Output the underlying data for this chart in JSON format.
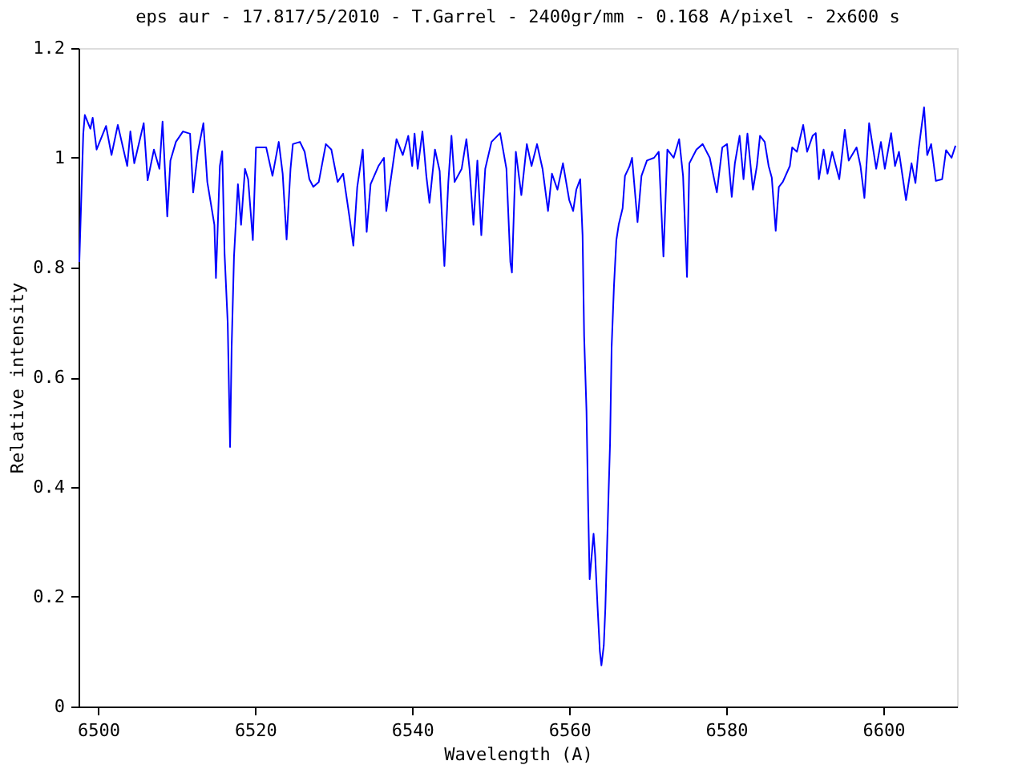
{
  "chart_data": {
    "type": "line",
    "title": "eps aur - 17.817/5/2010 - T.Garrel - 2400gr/mm - 0.168 A/pixel - 2x600 s",
    "xlabel": "Wavelength (A)",
    "ylabel": "Relative intensity",
    "xlim": [
      6497.5,
      6609.4
    ],
    "xticks": [
      6500,
      6520,
      6540,
      6560,
      6580,
      6600
    ],
    "ylim": [
      0,
      1.2
    ],
    "yticks": [
      0,
      0.2,
      0.4,
      0.6,
      0.8,
      1,
      1.2
    ],
    "grid": false,
    "legend": false,
    "marker": "none",
    "line_style": "solid",
    "series": [
      {
        "color": "#0000ff",
        "x": [
          6497.6,
          6498.1,
          6498.3,
          6499.0,
          6499.3,
          6499.8,
          6501.0,
          6501.7,
          6502.5,
          6503.7,
          6504.1,
          6504.6,
          6505.8,
          6506.3,
          6507.1,
          6507.8,
          6508.2,
          6508.8,
          6509.2,
          6509.9,
          6510.8,
          6511.7,
          6512.1,
          6512.7,
          6513.4,
          6513.9,
          6514.8,
          6515.0,
          6515.5,
          6515.8,
          6516.1,
          6516.5,
          6516.8,
          6517.0,
          6517.3,
          6517.8,
          6518.2,
          6518.7,
          6519.1,
          6519.7,
          6520.1,
          6521.4,
          6522.2,
          6523.0,
          6523.5,
          6524.0,
          6524.5,
          6524.8,
          6525.7,
          6526.3,
          6526.9,
          6527.4,
          6528.1,
          6529.0,
          6529.7,
          6530.5,
          6531.2,
          6532.0,
          6532.5,
          6533.0,
          6533.7,
          6534.2,
          6534.7,
          6535.7,
          6536.4,
          6536.7,
          6538.0,
          6538.8,
          6539.5,
          6540.0,
          6540.3,
          6540.7,
          6541.3,
          6541.8,
          6542.2,
          6542.9,
          6543.5,
          6544.1,
          6544.6,
          6545.0,
          6545.4,
          6546.3,
          6546.9,
          6547.3,
          6547.8,
          6548.3,
          6548.8,
          6549.3,
          6550.1,
          6551.2,
          6552.0,
          6552.5,
          6552.7,
          6553.2,
          6553.9,
          6554.6,
          6555.2,
          6555.9,
          6556.6,
          6557.3,
          6557.8,
          6558.5,
          6559.2,
          6560.0,
          6560.5,
          6560.9,
          6561.4,
          6561.7,
          6561.9,
          6562.2,
          6562.4,
          6562.6,
          6563.1,
          6563.3,
          6563.6,
          6563.9,
          6564.1,
          6564.4,
          6564.6,
          6565.0,
          6565.2,
          6565.4,
          6565.7,
          6566.0,
          6566.3,
          6566.8,
          6567.1,
          6567.7,
          6568.0,
          6568.7,
          6569.2,
          6569.9,
          6570.8,
          6571.4,
          6572.0,
          6572.5,
          6573.3,
          6574.0,
          6574.5,
          6575.0,
          6575.3,
          6576.2,
          6577.0,
          6577.9,
          6578.8,
          6579.5,
          6580.1,
          6580.7,
          6581.1,
          6581.7,
          6582.2,
          6582.7,
          6583.4,
          6583.9,
          6584.3,
          6584.9,
          6585.4,
          6585.8,
          6586.3,
          6586.7,
          6587.2,
          6588.1,
          6588.4,
          6589.0,
          6589.8,
          6590.3,
          6591.0,
          6591.4,
          6591.8,
          6592.4,
          6592.9,
          6593.5,
          6594.4,
          6595.1,
          6595.6,
          6596.6,
          6597.1,
          6597.6,
          6598.2,
          6599.1,
          6599.7,
          6600.2,
          6601.0,
          6601.5,
          6602.0,
          6602.9,
          6603.6,
          6604.1,
          6604.5,
          6605.2,
          6605.6,
          6606.1,
          6606.7,
          6607.5,
          6608.0,
          6608.7,
          6609.2
        ],
        "values": [
          0.81,
          1.044,
          1.078,
          1.053,
          1.073,
          1.015,
          1.058,
          1.005,
          1.06,
          0.985,
          1.048,
          0.99,
          1.063,
          0.959,
          1.015,
          0.98,
          1.066,
          0.893,
          0.995,
          1.029,
          1.048,
          1.044,
          0.937,
          1.011,
          1.063,
          0.956,
          0.878,
          0.781,
          0.985,
          1.012,
          0.825,
          0.699,
          0.473,
          0.655,
          0.82,
          0.952,
          0.878,
          0.98,
          0.961,
          0.85,
          1.019,
          1.019,
          0.967,
          1.029,
          0.971,
          0.851,
          0.98,
          1.025,
          1.029,
          1.011,
          0.961,
          0.947,
          0.956,
          1.025,
          1.015,
          0.956,
          0.971,
          0.893,
          0.84,
          0.947,
          1.015,
          0.865,
          0.952,
          0.985,
          1.0,
          0.903,
          1.034,
          1.005,
          1.04,
          0.985,
          1.044,
          0.98,
          1.048,
          0.967,
          0.918,
          1.015,
          0.976,
          0.803,
          0.956,
          1.04,
          0.956,
          0.98,
          1.034,
          0.98,
          0.878,
          0.995,
          0.859,
          0.98,
          1.029,
          1.045,
          0.98,
          0.81,
          0.791,
          1.011,
          0.932,
          1.025,
          0.985,
          1.025,
          0.98,
          0.903,
          0.971,
          0.942,
          0.99,
          0.923,
          0.903,
          0.942,
          0.961,
          0.859,
          0.674,
          0.538,
          0.373,
          0.232,
          0.315,
          0.276,
          0.184,
          0.101,
          0.075,
          0.111,
          0.179,
          0.383,
          0.48,
          0.655,
          0.767,
          0.85,
          0.878,
          0.908,
          0.967,
          0.985,
          1.0,
          0.883,
          0.967,
          0.995,
          1.0,
          1.011,
          0.82,
          1.015,
          1.0,
          1.034,
          0.967,
          0.783,
          0.99,
          1.015,
          1.025,
          1.0,
          0.937,
          1.019,
          1.025,
          0.929,
          0.99,
          1.04,
          0.961,
          1.044,
          0.942,
          0.985,
          1.04,
          1.029,
          0.985,
          0.964,
          0.867,
          0.947,
          0.956,
          0.985,
          1.019,
          1.011,
          1.06,
          1.011,
          1.04,
          1.045,
          0.961,
          1.015,
          0.971,
          1.011,
          0.961,
          1.051,
          0.995,
          1.019,
          0.985,
          0.927,
          1.063,
          0.98,
          1.029,
          0.98,
          1.045,
          0.985,
          1.011,
          0.923,
          0.99,
          0.954,
          1.015,
          1.092,
          1.005,
          1.025,
          0.958,
          0.961,
          1.014,
          1.0,
          1.022
        ]
      }
    ]
  }
}
